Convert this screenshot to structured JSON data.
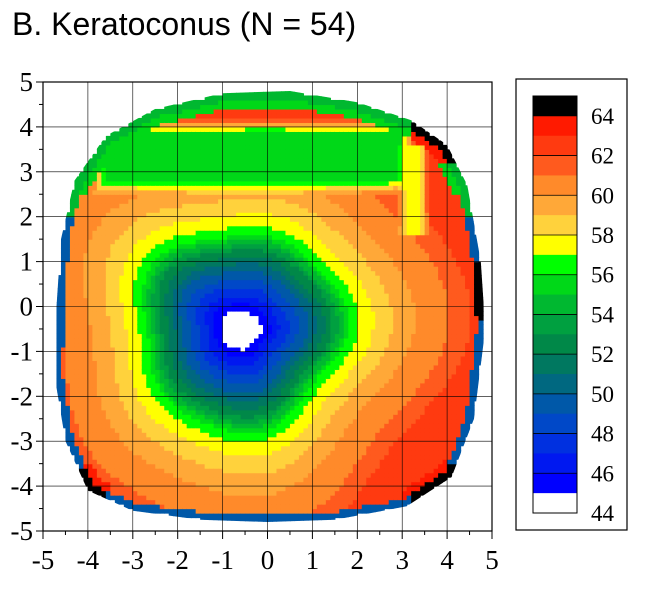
{
  "chart_data": {
    "type": "heatmap",
    "title": "B. Keratoconus (N = 54)",
    "xlabel": "",
    "ylabel": "",
    "xlim": [
      -5,
      5
    ],
    "ylim": [
      -5,
      5
    ],
    "xticks": [
      "-5",
      "-4",
      "-3",
      "-2",
      "-1",
      "0",
      "1",
      "2",
      "3",
      "4",
      "5"
    ],
    "yticks": [
      "5",
      "4",
      "3",
      "2",
      "1",
      "0",
      "-1",
      "-2",
      "-3",
      "-4",
      "-5"
    ],
    "grid": true,
    "colorbar": {
      "ticks": [
        "64",
        "62",
        "60",
        "58",
        "56",
        "54",
        "52",
        "50",
        "48",
        "46",
        "44"
      ],
      "bands": [
        {
          "from": 64,
          "to": 65,
          "color": "#000000"
        },
        {
          "from": 63,
          "to": 64,
          "color": "#ff1a00"
        },
        {
          "from": 62,
          "to": 63,
          "color": "#ff3a10"
        },
        {
          "from": 61,
          "to": 62,
          "color": "#ff5a1e"
        },
        {
          "from": 60,
          "to": 61,
          "color": "#ff8a2a"
        },
        {
          "from": 59,
          "to": 60,
          "color": "#ffa838"
        },
        {
          "from": 58,
          "to": 59,
          "color": "#ffd23c"
        },
        {
          "from": 57,
          "to": 58,
          "color": "#ffff00"
        },
        {
          "from": 56,
          "to": 57,
          "color": "#00ff00"
        },
        {
          "from": 55,
          "to": 56,
          "color": "#00d818"
        },
        {
          "from": 54,
          "to": 55,
          "color": "#00b830"
        },
        {
          "from": 53,
          "to": 54,
          "color": "#00a040"
        },
        {
          "from": 52,
          "to": 53,
          "color": "#008848"
        },
        {
          "from": 51,
          "to": 52,
          "color": "#007860"
        },
        {
          "from": 50,
          "to": 51,
          "color": "#006880"
        },
        {
          "from": 49,
          "to": 50,
          "color": "#0058a8"
        },
        {
          "from": 48,
          "to": 49,
          "color": "#0048c8"
        },
        {
          "from": 47,
          "to": 48,
          "color": "#0030e0"
        },
        {
          "from": 46,
          "to": 47,
          "color": "#0018f0"
        },
        {
          "from": 45,
          "to": 46,
          "color": "#0000ff"
        },
        {
          "from": 44,
          "to": 45,
          "color": "#ffffff"
        }
      ]
    },
    "field": {
      "description_levels": "centre-min approx 44 at (-0.6,-0.5); green ring 52-56 radius ~2; orange/red periphery 60-63",
      "center": [
        -0.6,
        -0.5
      ],
      "inner_value": 44.5,
      "ring": [
        {
          "r": 0.35,
          "value": 44.5
        },
        {
          "r": 0.8,
          "value": 47
        },
        {
          "r": 1.4,
          "value": 50
        },
        {
          "r": 1.9,
          "value": 53
        },
        {
          "r": 2.3,
          "value": 56.5
        },
        {
          "r": 2.9,
          "value": 58.5
        },
        {
          "r": 3.6,
          "value": 60
        },
        {
          "r": 4.3,
          "value": 61
        },
        {
          "r": 5.0,
          "value": 62.5
        }
      ],
      "upper_green_band": {
        "y_from": 2.5,
        "y_to": 4.2,
        "value": 55
      },
      "rim_value": 50
    },
    "boundary": [
      [
        -4.6,
        1.5
      ],
      [
        -4.3,
        2.8
      ],
      [
        -3.6,
        3.8
      ],
      [
        -2.5,
        4.4
      ],
      [
        -1.0,
        4.75
      ],
      [
        0.5,
        4.8
      ],
      [
        2.0,
        4.55
      ],
      [
        3.2,
        4.15
      ],
      [
        4.0,
        3.6
      ],
      [
        4.45,
        2.7
      ],
      [
        4.75,
        1.0
      ],
      [
        4.85,
        -0.5
      ],
      [
        4.6,
        -2.5
      ],
      [
        4.1,
        -3.8
      ],
      [
        3.1,
        -4.45
      ],
      [
        1.5,
        -4.75
      ],
      [
        0.0,
        -4.8
      ],
      [
        -1.5,
        -4.75
      ],
      [
        -3.0,
        -4.55
      ],
      [
        -4.0,
        -4.1
      ],
      [
        -4.5,
        -3.0
      ],
      [
        -4.75,
        -1.5
      ],
      [
        -4.7,
        0.0
      ]
    ]
  }
}
